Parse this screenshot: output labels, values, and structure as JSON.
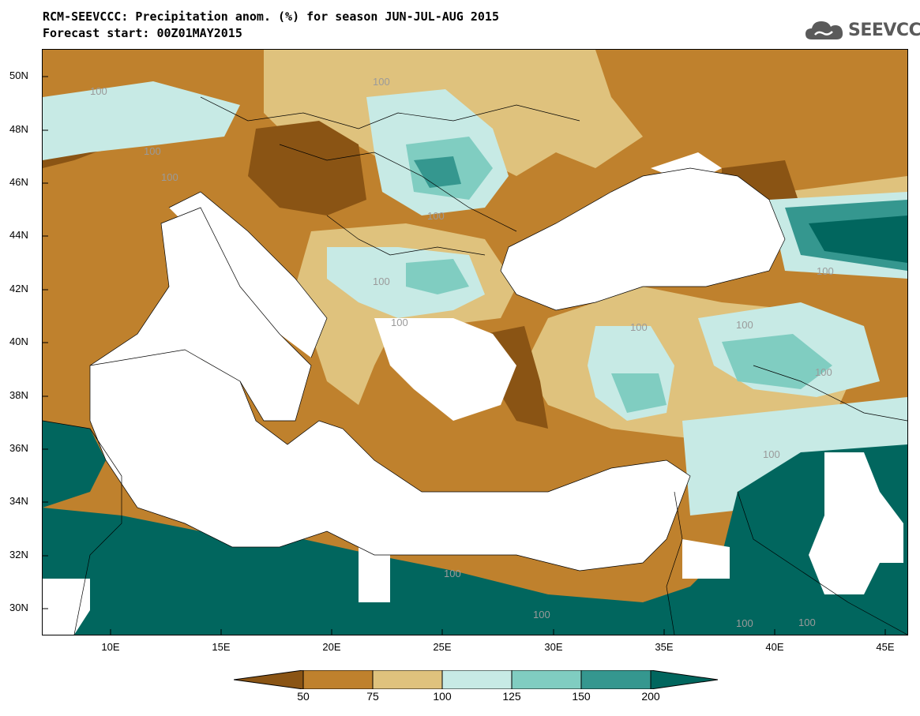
{
  "header": {
    "title_line1": "RCM-SEEVCCC: Precipitation anom. (%) for season JUN-JUL-AUG 2015",
    "title_line2": "Forecast start: 00Z01MAY2015"
  },
  "logo": {
    "text": "SEEVCCC",
    "icon": "cloud-logo-icon",
    "color": "#5a5a5a"
  },
  "map": {
    "lat_labels": [
      "50N",
      "48N",
      "46N",
      "44N",
      "42N",
      "40N",
      "38N",
      "36N",
      "34N",
      "32N",
      "30N"
    ],
    "lon_labels": [
      "10E",
      "15E",
      "20E",
      "25E",
      "30E",
      "35E",
      "40E",
      "45E"
    ],
    "contour_label": "100",
    "colors": {
      "below_50": "#8a5414",
      "50_75": "#bf812d",
      "75_100": "#dfc27d",
      "100_125": "#c7eae5",
      "125_150": "#80cdc1",
      "150_200": "#35978f",
      "above_200": "#01665e",
      "sea": "#ffffff"
    }
  },
  "colorbar": {
    "labels": [
      "50",
      "75",
      "100",
      "125",
      "150",
      "200"
    ],
    "colors": [
      "#8a5414",
      "#bf812d",
      "#dfc27d",
      "#c7eae5",
      "#80cdc1",
      "#35978f",
      "#01665e"
    ]
  }
}
